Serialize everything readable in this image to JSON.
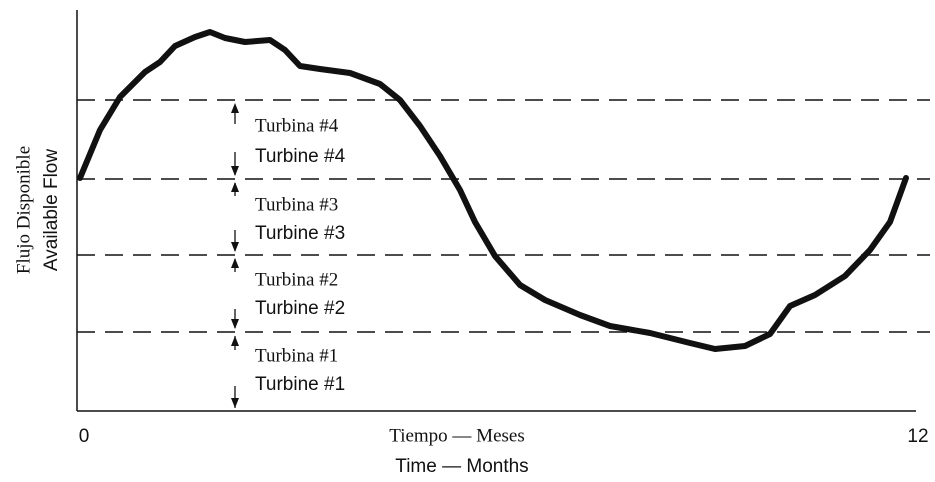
{
  "y_axis": {
    "label_es": "Flujo Disponible",
    "label_en": "Available Flow"
  },
  "x_axis": {
    "start": 0,
    "end": 12,
    "title_es": "Tiempo — Meses",
    "title_en": "Time — Months"
  },
  "turbines": [
    {
      "es": "Turbina #4",
      "en": "Turbine #4"
    },
    {
      "es": "Turbina #3",
      "en": "Turbine #3"
    },
    {
      "es": "Turbina #2",
      "en": "Turbine #2"
    },
    {
      "es": "Turbina #1",
      "en": "Turbine #1"
    }
  ]
}
